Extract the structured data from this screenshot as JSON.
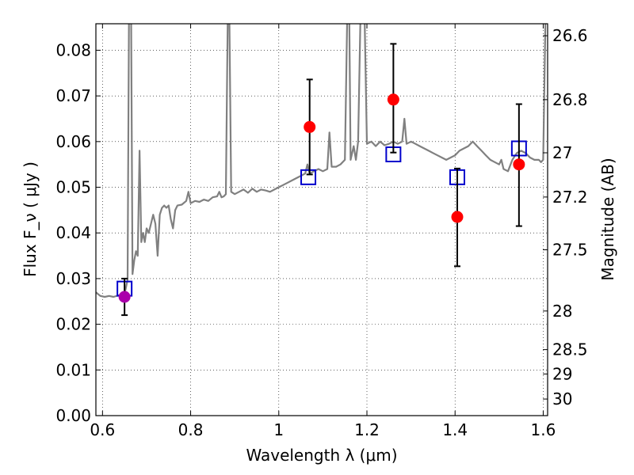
{
  "chart_data": {
    "type": "scatter",
    "xlabel": "Wavelength  λ (μm)",
    "ylabel": "Flux  F_ν ( μJy )",
    "ylabel_right": "Magnitude (AB)",
    "xlim": [
      0.585,
      1.61
    ],
    "ylim": [
      0.0,
      0.0858
    ],
    "grid": true,
    "x_ticks": [
      0.6,
      0.8,
      1.0,
      1.2,
      1.4,
      1.6
    ],
    "x_tick_labels": [
      "0.6",
      "0.8",
      "1",
      "1.2",
      "1.4",
      "1.6"
    ],
    "y_ticks": [
      0.0,
      0.01,
      0.02,
      0.03,
      0.04,
      0.05,
      0.06,
      0.07,
      0.08
    ],
    "y_tick_labels": [
      "0.00",
      "0.01",
      "0.02",
      "0.03",
      "0.04",
      "0.05",
      "0.06",
      "0.07",
      "0.08"
    ],
    "right_ticks_mag": [
      26.6,
      26.8,
      27,
      27.2,
      27.5,
      28,
      28.5,
      29,
      30
    ],
    "right_tick_labels": [
      "26.6",
      "26.8",
      "27",
      "27.2",
      "27.5",
      "28",
      "28.5",
      "29",
      "30"
    ],
    "colors": {
      "sed_line": "#808080",
      "observed": "#ff0000",
      "observed_alt": "#aa00aa",
      "model": "#0000cc",
      "errorbar": "#000000"
    },
    "series": [
      {
        "marker": "circle",
        "color": "#ff0000",
        "points": [
          {
            "x": 1.07,
            "y": 0.0632,
            "yerr_low": 0.0104,
            "yerr_high": 0.0104
          },
          {
            "x": 1.26,
            "y": 0.0692,
            "yerr_low": 0.0116,
            "yerr_high": 0.0122
          },
          {
            "x": 1.405,
            "y": 0.0435,
            "yerr_low": 0.0108,
            "yerr_high": 0.0106
          },
          {
            "x": 1.545,
            "y": 0.055,
            "yerr_low": 0.0135,
            "yerr_high": 0.0132
          }
        ]
      },
      {
        "marker": "circle",
        "color": "#aa00aa",
        "points": [
          {
            "x": 0.65,
            "y": 0.026,
            "yerr_low": 0.004,
            "yerr_high": 0.004
          }
        ]
      },
      {
        "marker": "open-square",
        "color": "#0000cc",
        "points": [
          {
            "x": 0.65,
            "y": 0.0278
          },
          {
            "x": 1.067,
            "y": 0.0522
          },
          {
            "x": 1.26,
            "y": 0.0572
          },
          {
            "x": 1.405,
            "y": 0.0522
          },
          {
            "x": 1.545,
            "y": 0.0585
          }
        ]
      },
      {
        "marker": "line",
        "color": "#808080",
        "points": [
          [
            0.585,
            0.027
          ],
          [
            0.595,
            0.0262
          ],
          [
            0.605,
            0.026
          ],
          [
            0.615,
            0.0262
          ],
          [
            0.625,
            0.026
          ],
          [
            0.635,
            0.0263
          ],
          [
            0.645,
            0.0265
          ],
          [
            0.652,
            0.0275
          ],
          [
            0.657,
            0.0298
          ],
          [
            0.66,
            0.086
          ],
          [
            0.662,
            0.086
          ],
          [
            0.665,
            0.086
          ],
          [
            0.668,
            0.031
          ],
          [
            0.672,
            0.034
          ],
          [
            0.676,
            0.036
          ],
          [
            0.68,
            0.035
          ],
          [
            0.684,
            0.058
          ],
          [
            0.688,
            0.038
          ],
          [
            0.692,
            0.04
          ],
          [
            0.696,
            0.038
          ],
          [
            0.7,
            0.041
          ],
          [
            0.705,
            0.04
          ],
          [
            0.71,
            0.042
          ],
          [
            0.715,
            0.044
          ],
          [
            0.72,
            0.042
          ],
          [
            0.725,
            0.035
          ],
          [
            0.73,
            0.044
          ],
          [
            0.735,
            0.0455
          ],
          [
            0.74,
            0.046
          ],
          [
            0.745,
            0.0455
          ],
          [
            0.75,
            0.046
          ],
          [
            0.755,
            0.043
          ],
          [
            0.76,
            0.041
          ],
          [
            0.765,
            0.045
          ],
          [
            0.77,
            0.046
          ],
          [
            0.78,
            0.0462
          ],
          [
            0.79,
            0.047
          ],
          [
            0.795,
            0.049
          ],
          [
            0.8,
            0.0465
          ],
          [
            0.81,
            0.047
          ],
          [
            0.82,
            0.0468
          ],
          [
            0.83,
            0.0473
          ],
          [
            0.84,
            0.047
          ],
          [
            0.85,
            0.0478
          ],
          [
            0.86,
            0.048
          ],
          [
            0.865,
            0.049
          ],
          [
            0.87,
            0.0478
          ],
          [
            0.875,
            0.048
          ],
          [
            0.88,
            0.0485
          ],
          [
            0.884,
            0.086
          ],
          [
            0.888,
            0.086
          ],
          [
            0.892,
            0.049
          ],
          [
            0.9,
            0.0485
          ],
          [
            0.91,
            0.049
          ],
          [
            0.92,
            0.0495
          ],
          [
            0.93,
            0.0488
          ],
          [
            0.94,
            0.0497
          ],
          [
            0.95,
            0.049
          ],
          [
            0.96,
            0.0495
          ],
          [
            0.97,
            0.0493
          ],
          [
            0.98,
            0.049
          ],
          [
            0.99,
            0.0495
          ],
          [
            1.0,
            0.05
          ],
          [
            1.01,
            0.0505
          ],
          [
            1.02,
            0.051
          ],
          [
            1.03,
            0.0515
          ],
          [
            1.04,
            0.052
          ],
          [
            1.05,
            0.0525
          ],
          [
            1.06,
            0.053
          ],
          [
            1.065,
            0.055
          ],
          [
            1.07,
            0.053
          ],
          [
            1.08,
            0.0535
          ],
          [
            1.09,
            0.054
          ],
          [
            1.1,
            0.0535
          ],
          [
            1.11,
            0.054
          ],
          [
            1.115,
            0.062
          ],
          [
            1.12,
            0.0545
          ],
          [
            1.13,
            0.0545
          ],
          [
            1.14,
            0.055
          ],
          [
            1.15,
            0.056
          ],
          [
            1.155,
            0.086
          ],
          [
            1.16,
            0.086
          ],
          [
            1.163,
            0.056
          ],
          [
            1.17,
            0.059
          ],
          [
            1.175,
            0.056
          ],
          [
            1.18,
            0.06
          ],
          [
            1.185,
            0.086
          ],
          [
            1.19,
            0.086
          ],
          [
            1.195,
            0.086
          ],
          [
            1.2,
            0.0595
          ],
          [
            1.21,
            0.06
          ],
          [
            1.22,
            0.059
          ],
          [
            1.23,
            0.06
          ],
          [
            1.24,
            0.0592
          ],
          [
            1.25,
            0.0595
          ],
          [
            1.26,
            0.06
          ],
          [
            1.27,
            0.0595
          ],
          [
            1.28,
            0.06
          ],
          [
            1.285,
            0.065
          ],
          [
            1.29,
            0.0595
          ],
          [
            1.3,
            0.06
          ],
          [
            1.31,
            0.0595
          ],
          [
            1.32,
            0.059
          ],
          [
            1.33,
            0.0585
          ],
          [
            1.34,
            0.058
          ],
          [
            1.35,
            0.0575
          ],
          [
            1.36,
            0.057
          ],
          [
            1.37,
            0.0565
          ],
          [
            1.38,
            0.056
          ],
          [
            1.39,
            0.0565
          ],
          [
            1.4,
            0.057
          ],
          [
            1.41,
            0.058
          ],
          [
            1.42,
            0.0585
          ],
          [
            1.43,
            0.059
          ],
          [
            1.44,
            0.06
          ],
          [
            1.45,
            0.059
          ],
          [
            1.46,
            0.058
          ],
          [
            1.47,
            0.057
          ],
          [
            1.48,
            0.056
          ],
          [
            1.49,
            0.0555
          ],
          [
            1.5,
            0.055
          ],
          [
            1.505,
            0.056
          ],
          [
            1.51,
            0.054
          ],
          [
            1.52,
            0.0535
          ],
          [
            1.53,
            0.056
          ],
          [
            1.54,
            0.0575
          ],
          [
            1.55,
            0.058
          ],
          [
            1.56,
            0.0575
          ],
          [
            1.57,
            0.0565
          ],
          [
            1.58,
            0.056
          ],
          [
            1.59,
            0.056
          ],
          [
            1.595,
            0.0555
          ],
          [
            1.6,
            0.056
          ],
          [
            1.605,
            0.086
          ],
          [
            1.61,
            0.086
          ]
        ]
      }
    ]
  }
}
